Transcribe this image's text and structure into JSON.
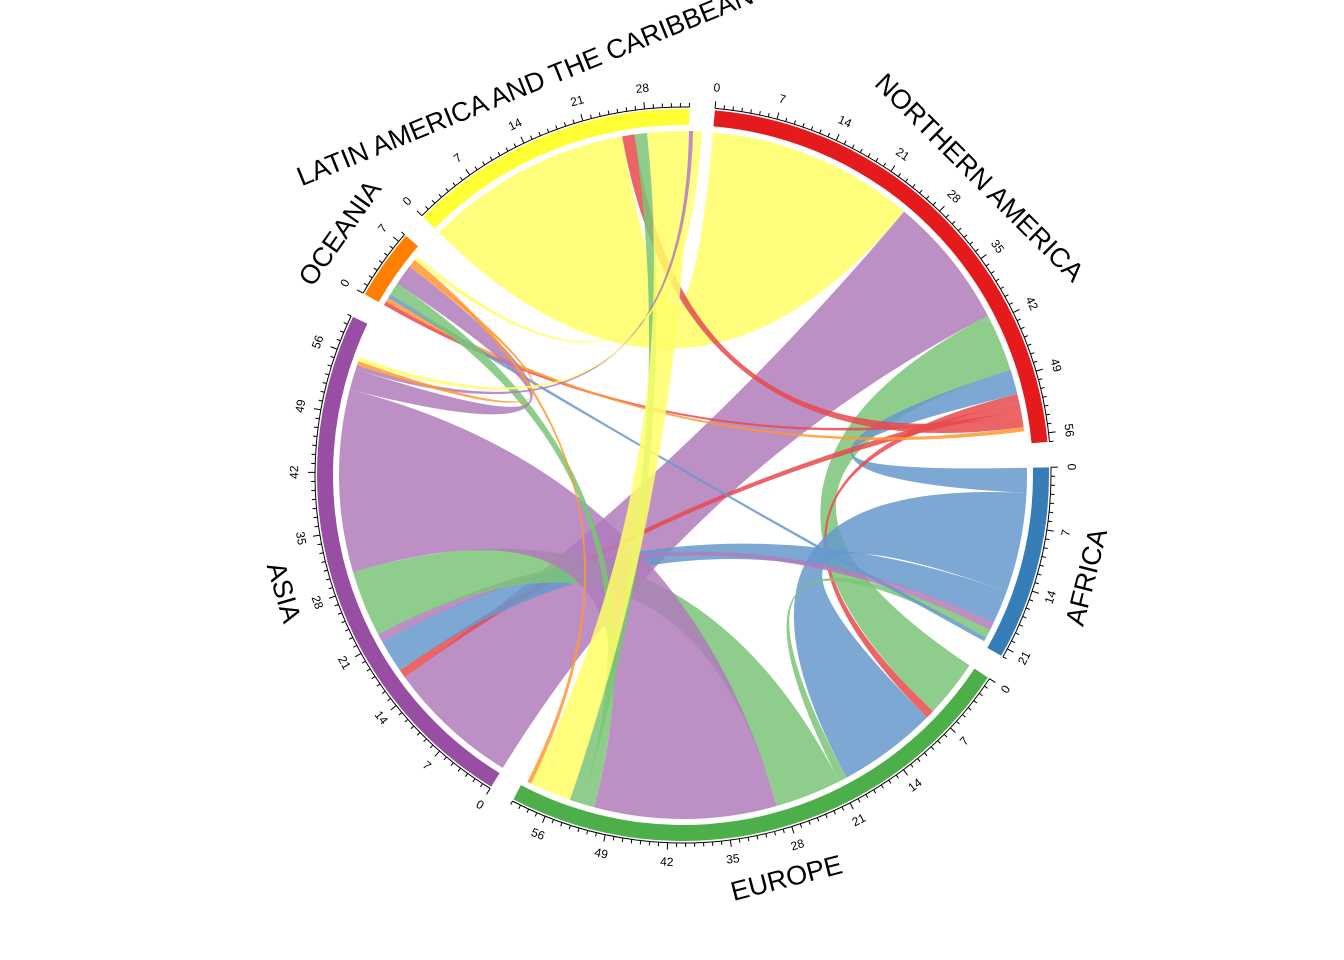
{
  "chart_data": {
    "type": "chord",
    "title": "",
    "tick_step": 7,
    "sectors": [
      {
        "name": "NORTHERN AMERICA",
        "total": 57,
        "color": "#E41A1C",
        "ribbon_color": "#E84A4C"
      },
      {
        "name": "AFRICA",
        "total": 22,
        "color": "#377EB8",
        "ribbon_color": "#6699CC"
      },
      {
        "name": "EUROPE",
        "total": 60,
        "color": "#4DAF4A",
        "ribbon_color": "#7AC477"
      },
      {
        "name": "ASIA",
        "total": 60,
        "color": "#984EA3",
        "ribbon_color": "#B07BBB"
      },
      {
        "name": "OCEANIA",
        "total": 8,
        "color": "#FF7F00",
        "ribbon_color": "#FF9933"
      },
      {
        "name": "LATIN AMERICA AND THE CARIBBEAN",
        "total": 33,
        "color": "#FFFF33",
        "ribbon_color": "#FFFF66"
      }
    ],
    "flows": [
      {
        "from": "LATIN AMERICA AND THE CARIBBEAN",
        "to": "NORTHERN AMERICA",
        "value": 25
      },
      {
        "from": "ASIA",
        "to": "NORTHERN AMERICA",
        "value": 16
      },
      {
        "from": "EUROPE",
        "to": "NORTHERN AMERICA",
        "value": 7
      },
      {
        "from": "AFRICA",
        "to": "NORTHERN AMERICA",
        "value": 3
      },
      {
        "from": "NORTHERN AMERICA",
        "to": "EUROPE",
        "value": 1
      },
      {
        "from": "NORTHERN AMERICA",
        "to": "ASIA",
        "value": 1
      },
      {
        "from": "NORTHERN AMERICA",
        "to": "OCEANIA",
        "value": 0.5
      },
      {
        "from": "NORTHERN AMERICA",
        "to": "LATIN AMERICA AND THE CARIBBEAN",
        "value": 1.5
      },
      {
        "from": "OCEANIA",
        "to": "NORTHERN AMERICA",
        "value": 0.5
      },
      {
        "from": "AFRICA",
        "to": "EUROPE",
        "value": 12
      },
      {
        "from": "AFRICA",
        "to": "ASIA",
        "value": 4
      },
      {
        "from": "ASIA",
        "to": "AFRICA",
        "value": 1
      },
      {
        "from": "EUROPE",
        "to": "AFRICA",
        "value": 1
      },
      {
        "from": "AFRICA",
        "to": "OCEANIA",
        "value": 0.5
      },
      {
        "from": "EUROPE",
        "to": "ASIA",
        "value": 8
      },
      {
        "from": "ASIA",
        "to": "EUROPE",
        "value": 22
      },
      {
        "from": "EUROPE",
        "to": "OCEANIA",
        "value": 1.5
      },
      {
        "from": "EUROPE",
        "to": "LATIN AMERICA AND THE CARIBBEAN",
        "value": 1.5
      },
      {
        "from": "LATIN AMERICA AND THE CARIBBEAN",
        "to": "EUROPE",
        "value": 5
      },
      {
        "from": "ASIA",
        "to": "OCEANIA",
        "value": 2.5
      },
      {
        "from": "ASIA",
        "to": "LATIN AMERICA AND THE CARIBBEAN",
        "value": 0.5
      },
      {
        "from": "OCEANIA",
        "to": "ASIA",
        "value": 0.5
      },
      {
        "from": "OCEANIA",
        "to": "EUROPE",
        "value": 0.5
      },
      {
        "from": "LATIN AMERICA AND THE CARIBBEAN",
        "to": "ASIA",
        "value": 0.5
      },
      {
        "from": "LATIN AMERICA AND THE CARIBBEAN",
        "to": "OCEANIA",
        "value": 0.5
      }
    ]
  }
}
